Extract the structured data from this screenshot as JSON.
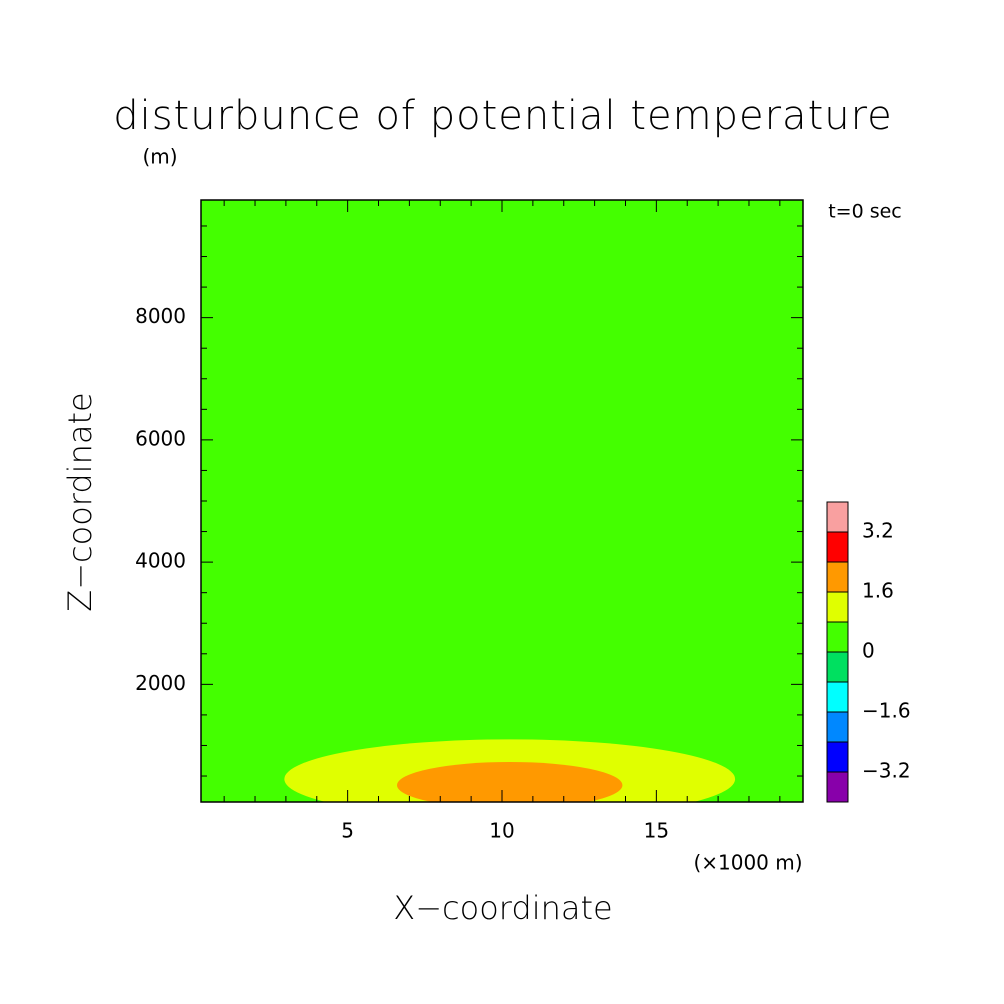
{
  "chart_data": {
    "type": "contour",
    "title": "disturbunce of potential temperature",
    "y_unit": "(m)",
    "annotation": "t=0 sec",
    "x_unit": "(×1000 m)",
    "x_label": "X−coordinate",
    "y_label": "Z−coordinate",
    "xlim": [
      0.25,
      19.75
    ],
    "ylim": [
      75,
      9925
    ],
    "xticks": [
      5,
      10,
      15
    ],
    "yticks": [
      2000,
      4000,
      6000,
      8000
    ],
    "xminorticks": [
      1,
      2,
      3,
      4,
      6,
      7,
      8,
      9,
      11,
      12,
      13,
      14,
      16,
      17,
      18,
      19
    ],
    "yminorticks": [
      500,
      1000,
      1500,
      2500,
      3000,
      3500,
      4500,
      5000,
      5500,
      6500,
      7000,
      7500,
      8500,
      9000,
      9500
    ],
    "background_color": "#44ff00",
    "regions": [
      {
        "color": "#e0ff00",
        "cx": 10.25,
        "cz": 450,
        "rx": 7.3,
        "rz": 650
      },
      {
        "color": "#ff9900",
        "cx": 10.25,
        "cz": 350,
        "rx": 3.65,
        "rz": 380
      }
    ],
    "colorbar": {
      "lim": [
        -4,
        4
      ],
      "colors": [
        "#8800aa",
        "#0000ff",
        "#0088ff",
        "#00ffff",
        "#00e060",
        "#44ff00",
        "#e0ff00",
        "#ff9900",
        "#ff0000",
        "#f9a0a0"
      ],
      "ticks": [
        {
          "value": -3.2,
          "label": "−3.2"
        },
        {
          "value": -1.6,
          "label": "−1.6"
        },
        0,
        1.6,
        3.2
      ]
    }
  }
}
